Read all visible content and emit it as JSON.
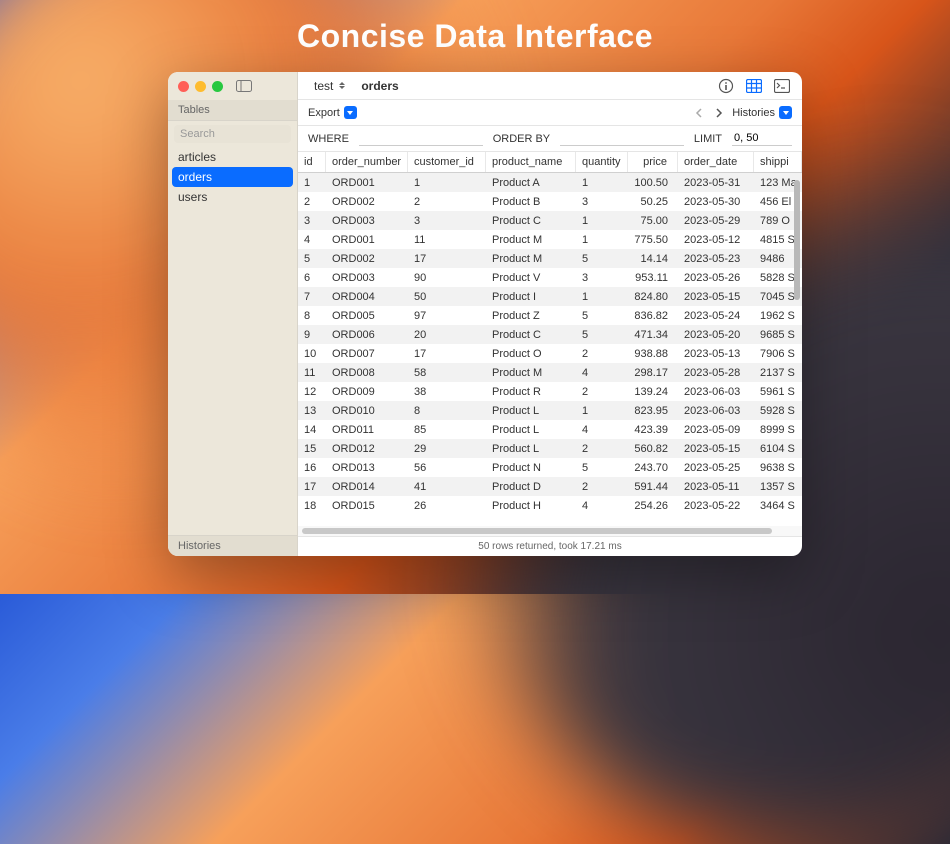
{
  "title": "Concise Data Interface",
  "window": {
    "database": "test",
    "table_name": "orders"
  },
  "sidebar": {
    "section": "Tables",
    "search_placeholder": "Search",
    "items": [
      "articles",
      "orders",
      "users"
    ],
    "selected_index": 1,
    "footer": "Histories"
  },
  "toolbar": {
    "export_label": "Export",
    "histories_label": "Histories"
  },
  "filters": {
    "where_label": "WHERE",
    "where_value": "",
    "orderby_label": "ORDER BY",
    "orderby_value": "",
    "limit_label": "LIMIT",
    "limit_value": "0, 50"
  },
  "grid": {
    "columns": [
      "id",
      "order_number",
      "customer_id",
      "product_name",
      "quantity",
      "price",
      "order_date",
      "shippi"
    ],
    "rows": [
      [
        "1",
        "ORD001",
        "1",
        "Product A",
        "1",
        "100.50",
        "2023-05-31",
        "123 Ma"
      ],
      [
        "2",
        "ORD002",
        "2",
        "Product B",
        "3",
        "50.25",
        "2023-05-30",
        "456 El"
      ],
      [
        "3",
        "ORD003",
        "3",
        "Product C",
        "1",
        "75.00",
        "2023-05-29",
        "789 O"
      ],
      [
        "4",
        "ORD001",
        "11",
        "Product M",
        "1",
        "775.50",
        "2023-05-12",
        "4815 S"
      ],
      [
        "5",
        "ORD002",
        "17",
        "Product M",
        "5",
        "14.14",
        "2023-05-23",
        "9486"
      ],
      [
        "6",
        "ORD003",
        "90",
        "Product V",
        "3",
        "953.11",
        "2023-05-26",
        "5828 S"
      ],
      [
        "7",
        "ORD004",
        "50",
        "Product I",
        "1",
        "824.80",
        "2023-05-15",
        "7045 S"
      ],
      [
        "8",
        "ORD005",
        "97",
        "Product Z",
        "5",
        "836.82",
        "2023-05-24",
        "1962 S"
      ],
      [
        "9",
        "ORD006",
        "20",
        "Product C",
        "5",
        "471.34",
        "2023-05-20",
        "9685 S"
      ],
      [
        "10",
        "ORD007",
        "17",
        "Product O",
        "2",
        "938.88",
        "2023-05-13",
        "7906 S"
      ],
      [
        "11",
        "ORD008",
        "58",
        "Product M",
        "4",
        "298.17",
        "2023-05-28",
        "2137 S"
      ],
      [
        "12",
        "ORD009",
        "38",
        "Product R",
        "2",
        "139.24",
        "2023-06-03",
        "5961 S"
      ],
      [
        "13",
        "ORD010",
        "8",
        "Product L",
        "1",
        "823.95",
        "2023-06-03",
        "5928 S"
      ],
      [
        "14",
        "ORD011",
        "85",
        "Product L",
        "4",
        "423.39",
        "2023-05-09",
        "8999 S"
      ],
      [
        "15",
        "ORD012",
        "29",
        "Product L",
        "2",
        "560.82",
        "2023-05-15",
        "6104 S"
      ],
      [
        "16",
        "ORD013",
        "56",
        "Product N",
        "5",
        "243.70",
        "2023-05-25",
        "9638 S"
      ],
      [
        "17",
        "ORD014",
        "41",
        "Product D",
        "2",
        "591.44",
        "2023-05-11",
        "1357 S"
      ],
      [
        "18",
        "ORD015",
        "26",
        "Product H",
        "4",
        "254.26",
        "2023-05-22",
        "3464 S"
      ]
    ]
  },
  "status": "50 rows returned, took 17.21 ms",
  "colors": {
    "accent": "#0a6cff",
    "sidebar_bg": "#ece7da",
    "row_alt": "#f2f2f2"
  }
}
